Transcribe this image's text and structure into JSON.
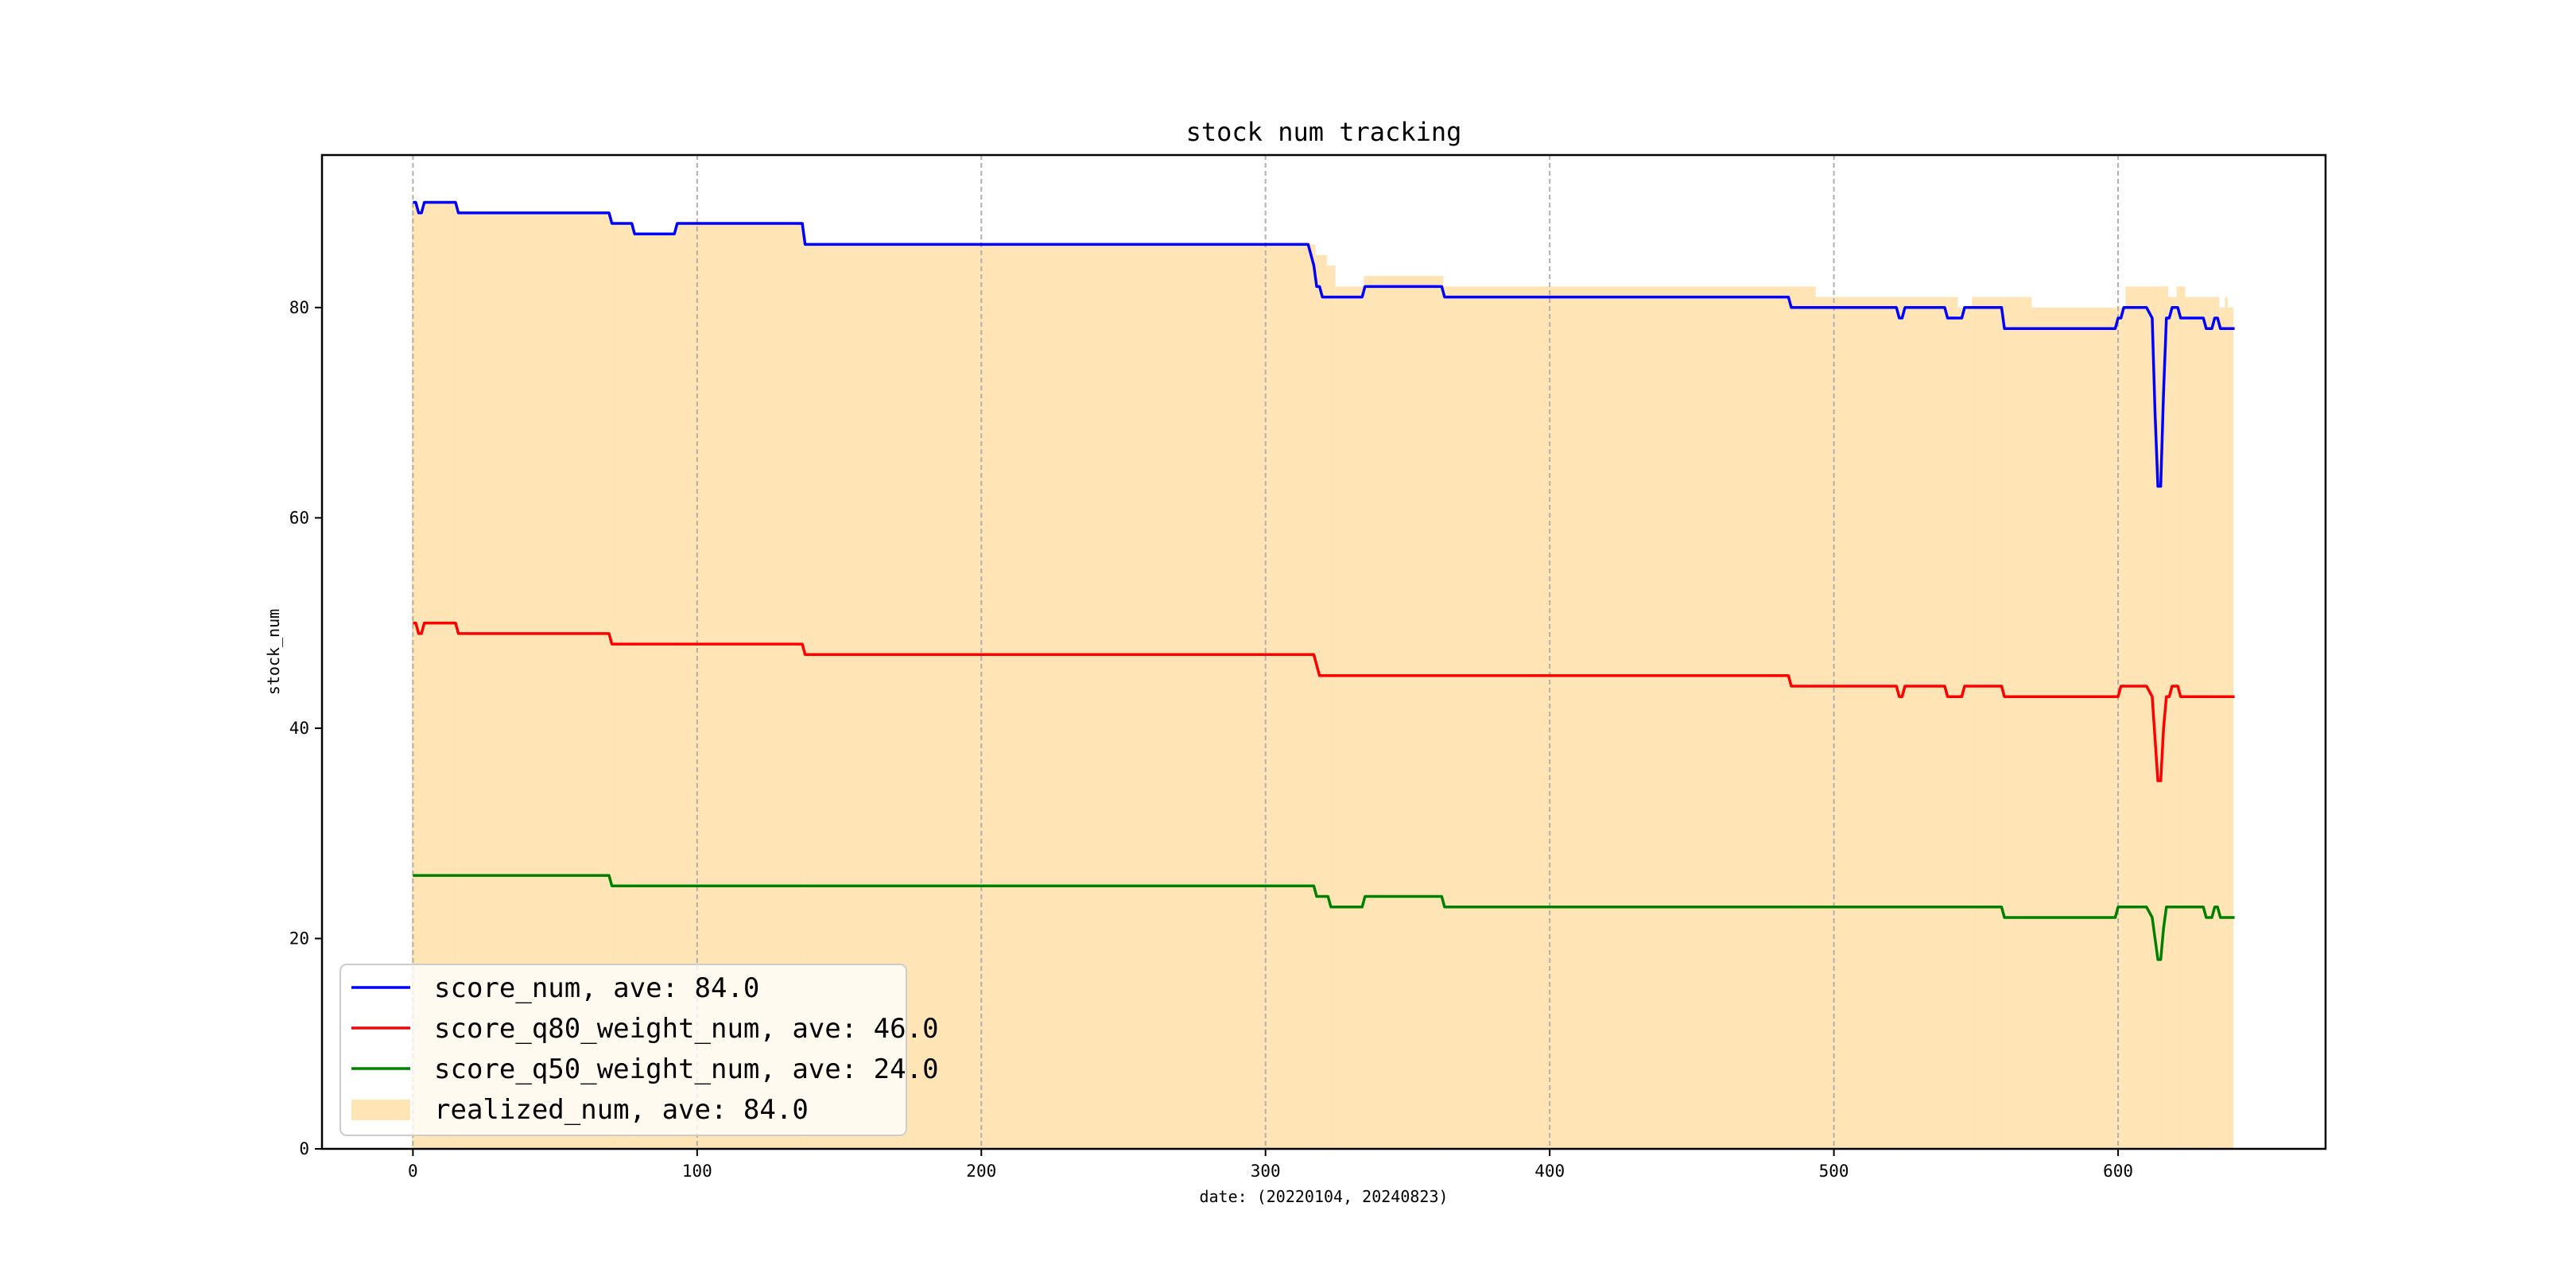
{
  "chart_data": {
    "type": "line",
    "title": "stock num tracking",
    "xlabel": "date: (20220104, 20240823)",
    "ylabel": "stock_num",
    "xlim": [
      -32,
      673
    ],
    "ylim": [
      0,
      94.5
    ],
    "xticks": [
      0,
      100,
      200,
      300,
      400,
      500,
      600
    ],
    "yticks": [
      0,
      20,
      40,
      60,
      80
    ],
    "grid": "vertical dashed",
    "legend_position": "lower-left",
    "series": [
      {
        "name": "score_num, ave: 84.0",
        "kind": "line",
        "color": "#0000ff",
        "points": [
          [
            0,
            90
          ],
          [
            1,
            90
          ],
          [
            2,
            89
          ],
          [
            3,
            89
          ],
          [
            4,
            90
          ],
          [
            15,
            90
          ],
          [
            16,
            89
          ],
          [
            69,
            89
          ],
          [
            70,
            88
          ],
          [
            77,
            88
          ],
          [
            78,
            87
          ],
          [
            92,
            87
          ],
          [
            93,
            88
          ],
          [
            137,
            88
          ],
          [
            138,
            86
          ],
          [
            315,
            86
          ],
          [
            316,
            85
          ],
          [
            317,
            84
          ],
          [
            318,
            82
          ],
          [
            319,
            82
          ],
          [
            320,
            81
          ],
          [
            334,
            81
          ],
          [
            335,
            82
          ],
          [
            362,
            82
          ],
          [
            363,
            81
          ],
          [
            484,
            81
          ],
          [
            485,
            80
          ],
          [
            522,
            80
          ],
          [
            523,
            79
          ],
          [
            524,
            79
          ],
          [
            525,
            80
          ],
          [
            539,
            80
          ],
          [
            540,
            79
          ],
          [
            545,
            79
          ],
          [
            546,
            80
          ],
          [
            559,
            80
          ],
          [
            560,
            78
          ],
          [
            599,
            78
          ],
          [
            600,
            79
          ],
          [
            601,
            79
          ],
          [
            602,
            80
          ],
          [
            610,
            80
          ],
          [
            612,
            79
          ],
          [
            613,
            70
          ],
          [
            614,
            63
          ],
          [
            615,
            63
          ],
          [
            616,
            72
          ],
          [
            617,
            79
          ],
          [
            618,
            79
          ],
          [
            619,
            80
          ],
          [
            621,
            80
          ],
          [
            622,
            79
          ],
          [
            630,
            79
          ],
          [
            631,
            78
          ],
          [
            633,
            78
          ],
          [
            634,
            79
          ],
          [
            635,
            79
          ],
          [
            636,
            78
          ],
          [
            641,
            78
          ]
        ]
      },
      {
        "name": "score_q80_weight_num, ave: 46.0",
        "kind": "line",
        "color": "#ff0000",
        "points": [
          [
            0,
            50
          ],
          [
            1,
            50
          ],
          [
            2,
            49
          ],
          [
            3,
            49
          ],
          [
            4,
            50
          ],
          [
            15,
            50
          ],
          [
            16,
            49
          ],
          [
            69,
            49
          ],
          [
            70,
            48
          ],
          [
            137,
            48
          ],
          [
            138,
            47
          ],
          [
            317,
            47
          ],
          [
            318,
            46
          ],
          [
            319,
            45
          ],
          [
            484,
            45
          ],
          [
            485,
            44
          ],
          [
            522,
            44
          ],
          [
            523,
            43
          ],
          [
            524,
            43
          ],
          [
            525,
            44
          ],
          [
            539,
            44
          ],
          [
            540,
            43
          ],
          [
            545,
            43
          ],
          [
            546,
            44
          ],
          [
            559,
            44
          ],
          [
            560,
            43
          ],
          [
            599,
            43
          ],
          [
            600,
            43
          ],
          [
            601,
            44
          ],
          [
            610,
            44
          ],
          [
            612,
            43
          ],
          [
            613,
            39
          ],
          [
            614,
            35
          ],
          [
            615,
            35
          ],
          [
            616,
            40
          ],
          [
            617,
            43
          ],
          [
            618,
            43
          ],
          [
            619,
            44
          ],
          [
            621,
            44
          ],
          [
            622,
            43
          ],
          [
            641,
            43
          ]
        ]
      },
      {
        "name": "score_q50_weight_num, ave: 24.0",
        "kind": "line",
        "color": "#008000",
        "points": [
          [
            0,
            26
          ],
          [
            69,
            26
          ],
          [
            70,
            25
          ],
          [
            317,
            25
          ],
          [
            318,
            24
          ],
          [
            322,
            24
          ],
          [
            323,
            23
          ],
          [
            334,
            23
          ],
          [
            335,
            24
          ],
          [
            362,
            24
          ],
          [
            363,
            23
          ],
          [
            559,
            23
          ],
          [
            560,
            22
          ],
          [
            599,
            22
          ],
          [
            600,
            23
          ],
          [
            610,
            23
          ],
          [
            612,
            22
          ],
          [
            613,
            20
          ],
          [
            614,
            18
          ],
          [
            615,
            18
          ],
          [
            616,
            21
          ],
          [
            617,
            23
          ],
          [
            630,
            23
          ],
          [
            631,
            22
          ],
          [
            633,
            22
          ],
          [
            634,
            23
          ],
          [
            635,
            23
          ],
          [
            636,
            22
          ],
          [
            641,
            22
          ]
        ]
      },
      {
        "name": "realized_num, ave: 84.0",
        "kind": "bar",
        "color": "#ffe4b5",
        "steps": [
          [
            0,
            90
          ],
          [
            2,
            89
          ],
          [
            4,
            90
          ],
          [
            16,
            89
          ],
          [
            70,
            88
          ],
          [
            78,
            87
          ],
          [
            93,
            88
          ],
          [
            138,
            86
          ],
          [
            318,
            85
          ],
          [
            322,
            84
          ],
          [
            325,
            82
          ],
          [
            330,
            82
          ],
          [
            335,
            83
          ],
          [
            362,
            83
          ],
          [
            363,
            82
          ],
          [
            489,
            82
          ],
          [
            494,
            81
          ],
          [
            523,
            81
          ],
          [
            525,
            81
          ],
          [
            538,
            81
          ],
          [
            544,
            80
          ],
          [
            549,
            81
          ],
          [
            560,
            81
          ],
          [
            570,
            80
          ],
          [
            601,
            80
          ],
          [
            603,
            82
          ],
          [
            615,
            82
          ],
          [
            618,
            81
          ],
          [
            621,
            82
          ],
          [
            624,
            81
          ],
          [
            635,
            81
          ],
          [
            636,
            80
          ],
          [
            638,
            81
          ],
          [
            639,
            80
          ],
          [
            641,
            80
          ]
        ]
      }
    ]
  }
}
